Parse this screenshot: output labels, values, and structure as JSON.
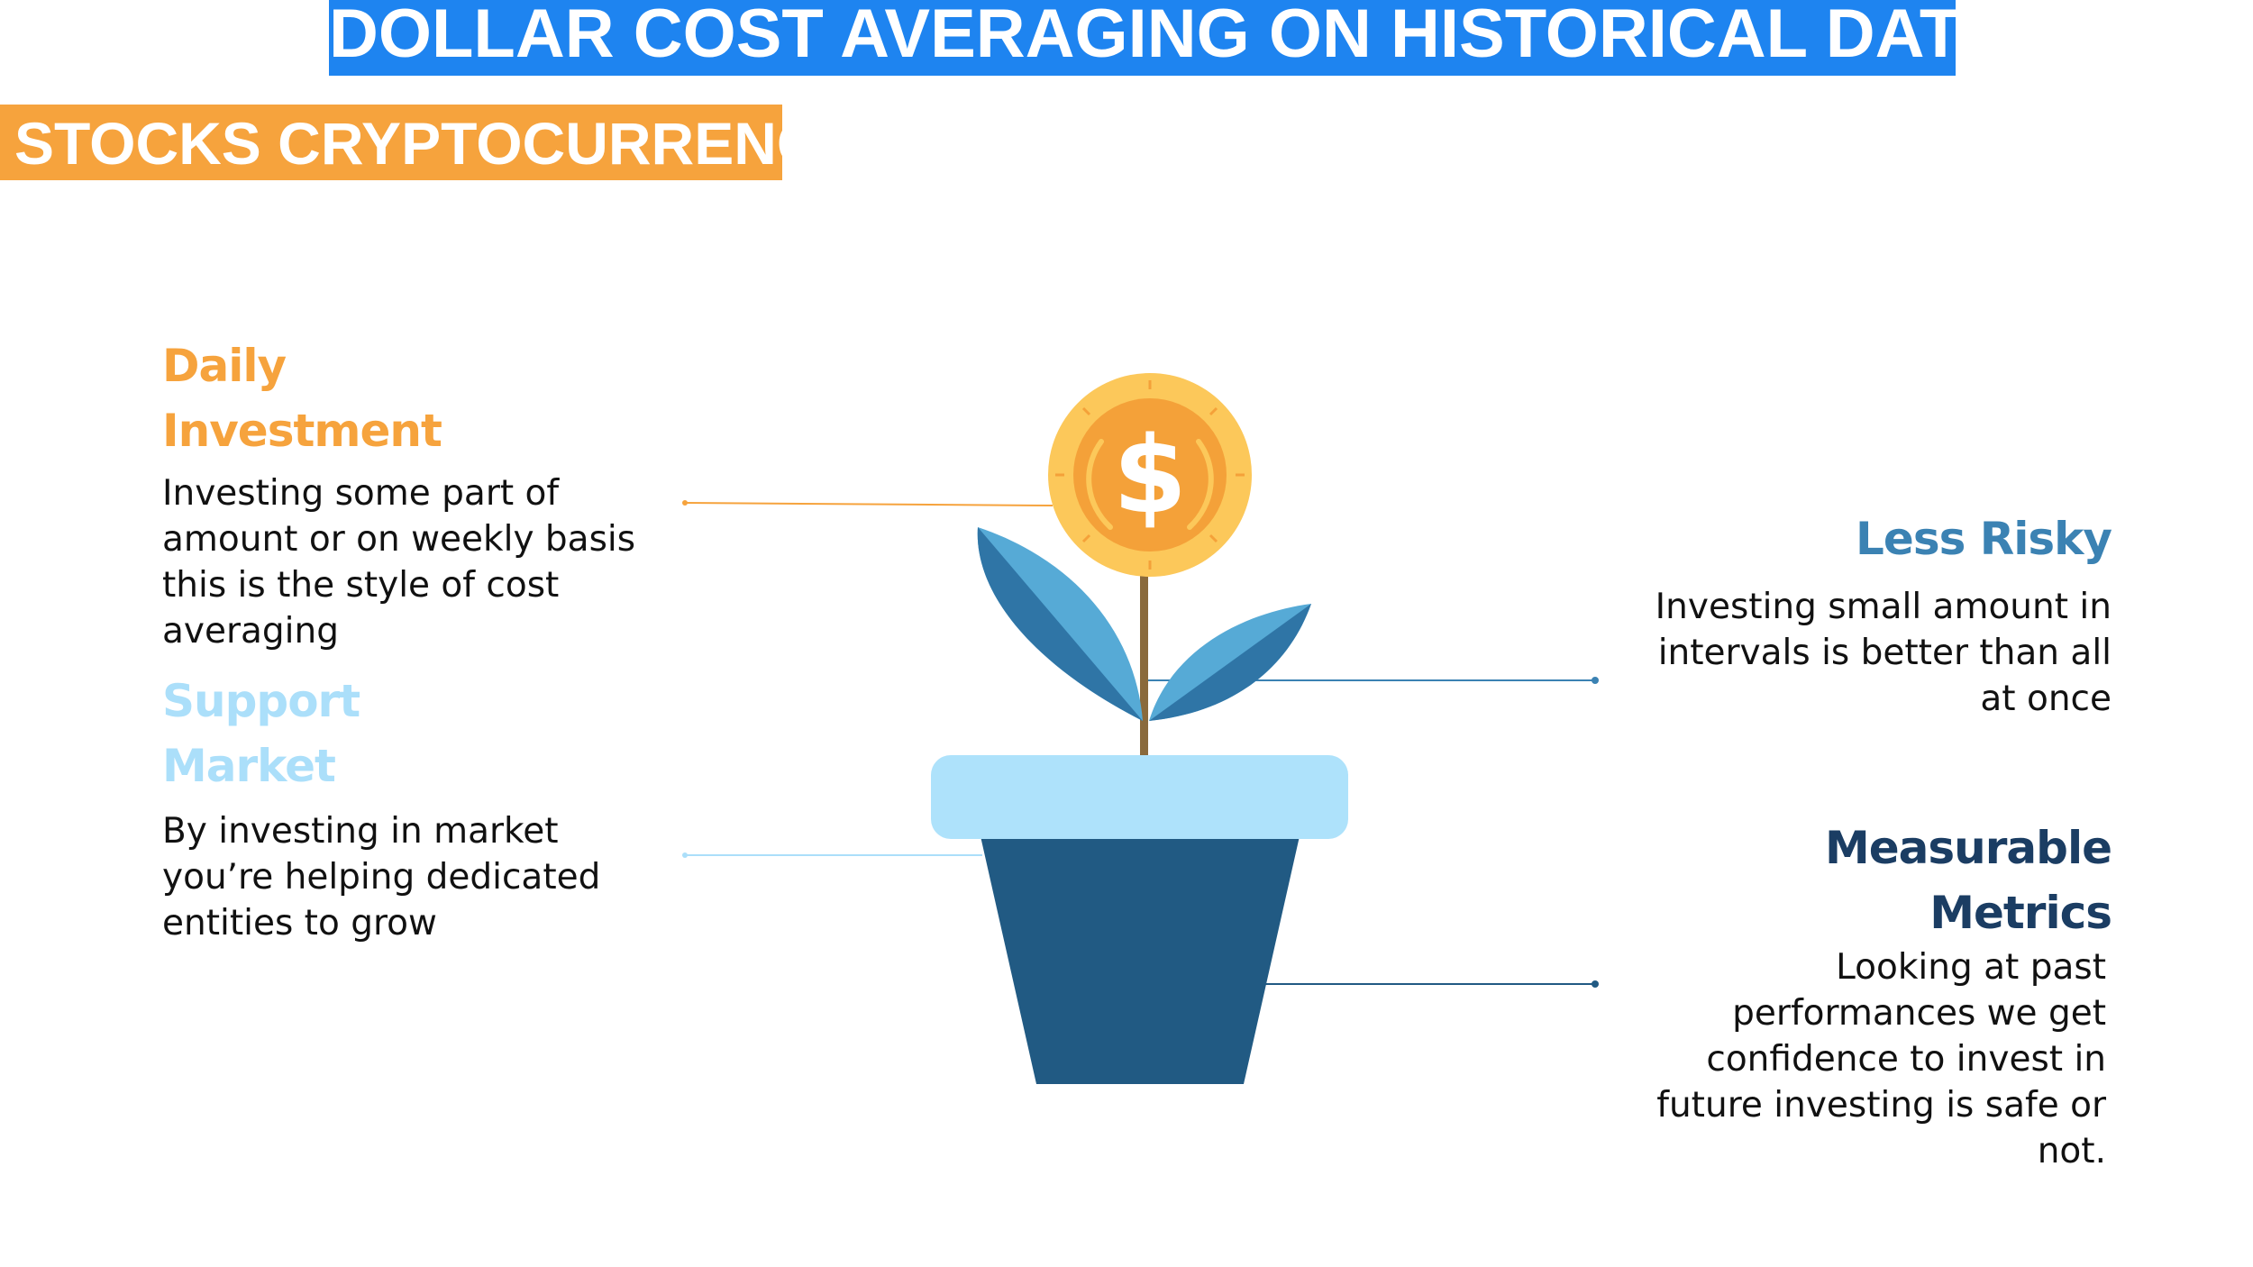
{
  "title": "DOLLAR COST AVERAGING ON HISTORICAL DATA",
  "subtitle": "STOCKS CRYPTOCURRENCY",
  "coin_symbol": "$",
  "colors": {
    "title_bg": "#1e84f0",
    "subtitle_bg": "#f6a33d",
    "orange": "#f6a33d",
    "light_blue": "#abdffa",
    "mid_blue": "#3b82b3",
    "dark_blue": "#1b3d63",
    "pot_rim": "#aee2fb",
    "pot_body": "#215a83",
    "leaf_light": "#56aad6",
    "leaf_dark": "#2f75a6",
    "stem": "#8a6a3c",
    "coin_outer": "#fcc85a",
    "coin_inner": "#f4a139"
  },
  "items": [
    {
      "heading_line1": "Daily",
      "heading_line2": "Investment",
      "text": [
        "Investing some part of",
        "amount or on weekly basis",
        "this is the style of cost",
        "averaging"
      ]
    },
    {
      "heading_line1": "Support",
      "heading_line2": "Market",
      "text": [
        "By investing in market",
        "you’re helping dedicated",
        "entities to grow"
      ]
    },
    {
      "heading_line1": "Less Risky",
      "text": [
        "Investing small amount in",
        "intervals is better than all",
        "at once"
      ]
    },
    {
      "heading_line1": "Measurable",
      "heading_line2": "Metrics",
      "text": [
        "Looking at past",
        "performances we get",
        "confidence to invest in",
        "future investing is safe or",
        "not."
      ]
    }
  ]
}
